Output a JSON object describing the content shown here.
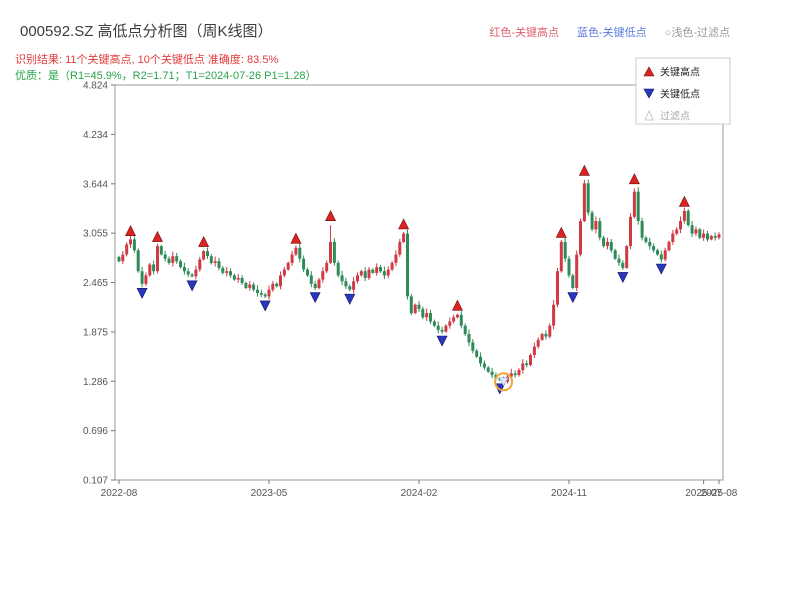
{
  "header": {
    "title": "000592.SZ 高低点分析图（周K线图）",
    "legend_top": {
      "high": "红色-关键高点",
      "low": "蓝色-关键低点",
      "filtered": "○浅色-过滤点"
    },
    "result_line": "识别结果: 11个关键高点, 10个关键低点  准确度: 83.5%",
    "quality_line": "优质：是（R1=45.9%，R2=1.71；T1=2024-07-26 P1=1.28）"
  },
  "chart_data": {
    "type": "candlestick",
    "symbol": "000592.SZ",
    "timeframe": "weekly",
    "title": "000592.SZ 高低点分析图（周K线图）",
    "ylim": [
      0.107,
      4.824
    ],
    "grid": false,
    "y_ticks": [
      "4.824",
      "4.234",
      "3.644",
      "3.055",
      "2.465",
      "1.875",
      "1.286",
      "0.696",
      "0.107"
    ],
    "x_ticks": [
      {
        "week": 0,
        "label": "2022-08"
      },
      {
        "week": 39,
        "label": "2023-05"
      },
      {
        "week": 78,
        "label": "2024-02"
      },
      {
        "week": 117,
        "label": "2024-11"
      },
      {
        "week": 152,
        "label": "2025-07"
      },
      {
        "week": 156,
        "label": "2025-08"
      }
    ],
    "closes": [
      2.72,
      2.8,
      2.92,
      2.98,
      2.85,
      2.6,
      2.45,
      2.55,
      2.68,
      2.6,
      2.9,
      2.8,
      2.75,
      2.7,
      2.78,
      2.72,
      2.65,
      2.6,
      2.56,
      2.54,
      2.62,
      2.74,
      2.84,
      2.78,
      2.7,
      2.72,
      2.64,
      2.58,
      2.6,
      2.55,
      2.5,
      2.52,
      2.46,
      2.4,
      2.44,
      2.38,
      2.34,
      2.32,
      2.3,
      2.38,
      2.45,
      2.42,
      2.55,
      2.62,
      2.7,
      2.8,
      2.88,
      2.75,
      2.62,
      2.55,
      2.45,
      2.4,
      2.5,
      2.6,
      2.7,
      2.95,
      2.7,
      2.55,
      2.48,
      2.42,
      2.38,
      2.48,
      2.55,
      2.6,
      2.52,
      2.62,
      2.58,
      2.65,
      2.6,
      2.55,
      2.62,
      2.7,
      2.8,
      2.95,
      3.05,
      2.3,
      2.1,
      2.2,
      2.15,
      2.05,
      2.1,
      2.0,
      1.95,
      1.9,
      1.88,
      1.95,
      2.0,
      2.05,
      2.08,
      1.95,
      1.85,
      1.75,
      1.65,
      1.58,
      1.5,
      1.45,
      1.4,
      1.36,
      1.32,
      1.3,
      1.28,
      1.34,
      1.38,
      1.36,
      1.42,
      1.5,
      1.48,
      1.6,
      1.7,
      1.78,
      1.85,
      1.82,
      1.95,
      2.2,
      2.6,
      2.95,
      2.75,
      2.55,
      2.4,
      2.8,
      3.2,
      3.65,
      3.3,
      3.1,
      3.2,
      3.0,
      2.9,
      2.95,
      2.85,
      2.75,
      2.7,
      2.64,
      2.9,
      3.25,
      3.55,
      3.2,
      3.0,
      2.95,
      2.9,
      2.85,
      2.8,
      2.74,
      2.85,
      2.95,
      3.05,
      3.1,
      3.2,
      3.32,
      3.15,
      3.05,
      3.1,
      3.0,
      3.05,
      2.98,
      3.02,
      3.0,
      3.04
    ],
    "high_markers": [
      {
        "week": 3,
        "price": 3.0
      },
      {
        "week": 10,
        "price": 2.93
      },
      {
        "week": 22,
        "price": 2.87
      },
      {
        "week": 46,
        "price": 2.91
      },
      {
        "week": 55,
        "price": 3.18
      },
      {
        "week": 74,
        "price": 3.08
      },
      {
        "week": 88,
        "price": 2.11
      },
      {
        "week": 115,
        "price": 2.98
      },
      {
        "week": 121,
        "price": 3.72
      },
      {
        "week": 134,
        "price": 3.62
      },
      {
        "week": 147,
        "price": 3.35
      }
    ],
    "low_markers": [
      {
        "week": 6,
        "price": 2.42
      },
      {
        "week": 19,
        "price": 2.51
      },
      {
        "week": 38,
        "price": 2.27
      },
      {
        "week": 51,
        "price": 2.37
      },
      {
        "week": 60,
        "price": 2.35
      },
      {
        "week": 84,
        "price": 1.85
      },
      {
        "week": 99,
        "price": 1.28
      },
      {
        "week": 118,
        "price": 2.37
      },
      {
        "week": 131,
        "price": 2.61
      },
      {
        "week": 141,
        "price": 2.71
      }
    ],
    "filtered_point": {
      "week": 100,
      "price": 1.28,
      "date": "2024-07-26"
    },
    "inner_legend": [
      {
        "label": "关键高点",
        "type": "high"
      },
      {
        "label": "关键低点",
        "type": "low"
      },
      {
        "label": "过滤点",
        "type": "filtered"
      }
    ],
    "colors": {
      "up": "#cf3a45",
      "down": "#2e8b57",
      "high_marker": "#dd2222",
      "low_marker": "#2936bd",
      "filtered": "#f0a437",
      "axis_text": "#555555",
      "plot_border": "#9a9a9a"
    }
  }
}
